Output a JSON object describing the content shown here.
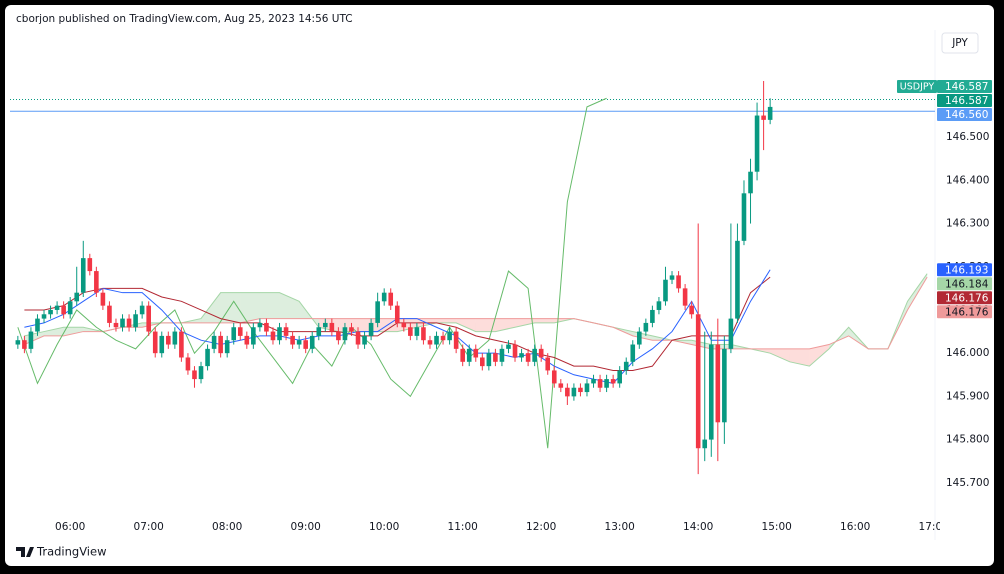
{
  "header": {
    "publisher": "cborjon published on TradingView.com, Aug 25, 2023 14:56 UTC",
    "currency_button": "JPY",
    "footer": "TradingView"
  },
  "chart_data": {
    "type": "candlestick",
    "symbol": "USDJPY",
    "up_color": "#089981",
    "down_color": "#f23645",
    "xlim": [
      "05:14",
      "17:01"
    ],
    "ylim": [
      145.637,
      146.748
    ],
    "grid": false,
    "xticks": [
      "06:00",
      "07:00",
      "08:00",
      "09:00",
      "10:00",
      "11:00",
      "12:00",
      "13:00",
      "14:00",
      "15:00",
      "16:00",
      "17:00"
    ],
    "yticks": [
      {
        "value": 145.7,
        "label": "145.700"
      },
      {
        "value": 145.8,
        "label": "145.800"
      },
      {
        "value": 145.9,
        "label": "145.900"
      },
      {
        "value": 146.0,
        "label": "146.000"
      },
      {
        "value": 146.1,
        "label": "146.100"
      },
      {
        "value": 146.2,
        "label": "146.200"
      },
      {
        "value": 146.3,
        "label": "146.300"
      },
      {
        "value": 146.4,
        "label": "146.400"
      },
      {
        "value": 146.5,
        "label": "146.500"
      }
    ],
    "x": [
      "05:20",
      "05:25",
      "05:30",
      "05:35",
      "05:40",
      "05:45",
      "05:50",
      "05:55",
      "06:00",
      "06:05",
      "06:10",
      "06:15",
      "06:20",
      "06:25",
      "06:30",
      "06:35",
      "06:40",
      "06:45",
      "06:50",
      "06:55",
      "07:00",
      "07:05",
      "07:10",
      "07:15",
      "07:20",
      "07:25",
      "07:30",
      "07:35",
      "07:40",
      "07:45",
      "07:50",
      "07:55",
      "08:00",
      "08:05",
      "08:10",
      "08:15",
      "08:20",
      "08:25",
      "08:30",
      "08:35",
      "08:40",
      "08:45",
      "08:50",
      "08:55",
      "09:00",
      "09:05",
      "09:10",
      "09:15",
      "09:20",
      "09:25",
      "09:30",
      "09:35",
      "09:40",
      "09:45",
      "09:50",
      "09:55",
      "10:00",
      "10:05",
      "10:10",
      "10:15",
      "10:20",
      "10:25",
      "10:30",
      "10:35",
      "10:40",
      "10:45",
      "10:50",
      "10:55",
      "11:00",
      "11:05",
      "11:10",
      "11:15",
      "11:20",
      "11:25",
      "11:30",
      "11:35",
      "11:40",
      "11:45",
      "11:50",
      "11:55",
      "12:00",
      "12:05",
      "12:10",
      "12:15",
      "12:20",
      "12:25",
      "12:30",
      "12:35",
      "12:40",
      "12:45",
      "12:50",
      "12:55",
      "13:00",
      "13:05",
      "13:10",
      "13:15",
      "13:20",
      "13:25",
      "13:30",
      "13:35",
      "13:40",
      "13:45",
      "13:50",
      "13:55",
      "14:00",
      "14:05",
      "14:10",
      "14:15",
      "14:20",
      "14:25",
      "14:30",
      "14:35",
      "14:40",
      "14:45",
      "14:50",
      "14:55"
    ],
    "open": [
      146.02,
      146.03,
      146.01,
      146.05,
      146.08,
      146.09,
      146.1,
      146.11,
      146.09,
      146.12,
      146.14,
      146.22,
      146.19,
      146.14,
      146.11,
      146.07,
      146.06,
      146.08,
      146.06,
      146.09,
      146.11,
      146.05,
      146.0,
      146.04,
      146.02,
      146.05,
      145.99,
      145.96,
      145.94,
      145.97,
      146.01,
      146.04,
      146.0,
      146.03,
      146.06,
      146.04,
      146.02,
      146.06,
      146.07,
      146.05,
      146.03,
      146.06,
      146.04,
      146.02,
      146.03,
      146.01,
      146.04,
      146.06,
      146.07,
      146.05,
      146.03,
      146.06,
      146.05,
      146.02,
      146.04,
      146.07,
      146.12,
      146.14,
      146.11,
      146.07,
      146.06,
      146.04,
      146.06,
      146.03,
      146.02,
      146.04,
      146.03,
      146.05,
      146.01,
      145.98,
      146.01,
      145.99,
      145.97,
      146.0,
      145.98,
      146.01,
      146.02,
      145.99,
      146.0,
      145.98,
      146.01,
      145.99,
      145.96,
      145.93,
      145.92,
      145.9,
      145.92,
      145.91,
      145.93,
      145.94,
      145.92,
      145.94,
      145.93,
      145.96,
      145.98,
      146.02,
      146.05,
      146.07,
      146.1,
      146.12,
      146.17,
      146.18,
      146.15,
      146.11,
      146.09,
      145.78,
      145.8,
      146.02,
      145.84,
      146.01,
      146.08,
      146.26,
      146.37,
      146.42,
      146.55,
      146.54
    ],
    "high": [
      146.04,
      146.04,
      146.06,
      146.09,
      146.1,
      146.11,
      146.12,
      146.12,
      146.13,
      146.2,
      146.26,
      146.23,
      146.2,
      146.15,
      146.12,
      146.08,
      146.09,
      146.09,
      146.1,
      146.12,
      146.12,
      146.06,
      146.05,
      146.05,
      146.06,
      146.06,
      146.0,
      145.97,
      145.98,
      146.02,
      146.05,
      146.05,
      146.04,
      146.07,
      146.07,
      146.05,
      146.07,
      146.08,
      146.08,
      146.06,
      146.07,
      146.07,
      146.05,
      146.04,
      146.04,
      146.05,
      146.07,
      146.08,
      146.08,
      146.06,
      146.07,
      146.07,
      146.06,
      146.05,
      146.08,
      146.14,
      146.15,
      146.15,
      146.12,
      146.08,
      146.07,
      146.07,
      146.07,
      146.04,
      146.05,
      146.05,
      146.06,
      146.06,
      146.02,
      146.02,
      146.02,
      146.0,
      146.01,
      146.01,
      146.02,
      146.03,
      146.03,
      146.01,
      146.01,
      146.02,
      146.02,
      146.0,
      145.97,
      145.94,
      145.93,
      145.93,
      145.93,
      145.94,
      145.95,
      145.95,
      145.95,
      145.95,
      145.97,
      145.99,
      146.03,
      146.06,
      146.08,
      146.11,
      146.13,
      146.2,
      146.19,
      146.19,
      146.16,
      146.12,
      146.3,
      146.05,
      146.05,
      146.08,
      146.04,
      146.3,
      146.3,
      146.4,
      146.45,
      146.58,
      146.63,
      146.59
    ],
    "low": [
      146.01,
      146.0,
      146.0,
      146.04,
      146.07,
      146.08,
      146.09,
      146.08,
      146.08,
      146.11,
      146.13,
      146.18,
      146.13,
      146.1,
      146.06,
      146.05,
      146.05,
      146.05,
      146.05,
      146.08,
      146.04,
      145.99,
      145.99,
      146.01,
      146.01,
      145.98,
      145.95,
      145.92,
      145.93,
      145.96,
      146.0,
      145.99,
      145.99,
      146.02,
      146.03,
      146.01,
      146.01,
      146.05,
      146.04,
      146.02,
      146.02,
      146.03,
      146.01,
      146.01,
      146.0,
      146.0,
      146.03,
      146.05,
      146.04,
      146.02,
      146.02,
      146.04,
      146.01,
      146.01,
      146.03,
      146.06,
      146.11,
      146.1,
      146.06,
      146.05,
      146.03,
      146.03,
      146.02,
      146.01,
      146.01,
      146.02,
      146.02,
      146.0,
      145.97,
      145.97,
      145.98,
      145.96,
      145.96,
      145.97,
      145.97,
      146.0,
      145.98,
      145.98,
      145.97,
      145.97,
      145.98,
      145.95,
      145.92,
      145.91,
      145.88,
      145.89,
      145.9,
      145.9,
      145.92,
      145.91,
      145.91,
      145.92,
      145.92,
      145.95,
      145.97,
      146.01,
      146.04,
      146.06,
      146.09,
      146.11,
      146.16,
      146.14,
      146.1,
      146.08,
      145.72,
      145.75,
      145.76,
      145.75,
      145.79,
      146.0,
      146.07,
      146.25,
      146.3,
      146.4,
      146.47,
      146.53
    ],
    "close": [
      146.03,
      146.01,
      146.05,
      146.08,
      146.09,
      146.1,
      146.11,
      146.09,
      146.12,
      146.14,
      146.22,
      146.19,
      146.14,
      146.11,
      146.07,
      146.06,
      146.08,
      146.06,
      146.09,
      146.11,
      146.05,
      146.0,
      146.04,
      146.02,
      146.05,
      145.99,
      145.96,
      145.94,
      145.97,
      146.01,
      146.04,
      146.0,
      146.03,
      146.06,
      146.04,
      146.02,
      146.06,
      146.07,
      146.05,
      146.03,
      146.06,
      146.04,
      146.02,
      146.03,
      146.01,
      146.04,
      146.06,
      146.07,
      146.05,
      146.03,
      146.06,
      146.05,
      146.02,
      146.04,
      146.07,
      146.12,
      146.14,
      146.11,
      146.07,
      146.06,
      146.04,
      146.06,
      146.03,
      146.02,
      146.04,
      146.03,
      146.05,
      146.01,
      145.98,
      146.01,
      145.99,
      145.97,
      146.0,
      145.98,
      146.01,
      146.02,
      145.99,
      146.0,
      145.98,
      146.01,
      145.99,
      145.96,
      145.93,
      145.92,
      145.9,
      145.92,
      145.91,
      145.93,
      145.94,
      145.92,
      145.94,
      145.93,
      145.96,
      145.98,
      146.02,
      146.05,
      146.07,
      146.1,
      146.12,
      146.17,
      146.18,
      146.15,
      146.11,
      146.09,
      145.78,
      145.8,
      146.02,
      145.84,
      146.01,
      146.08,
      146.26,
      146.37,
      146.42,
      146.55,
      146.54,
      146.57
    ],
    "cloud": {
      "up_fill": "rgba(67,160,71,0.18)",
      "down_fill": "rgba(244,67,54,0.18)",
      "a_color": "#a5d6a7",
      "b_color": "#ef9a9a",
      "x": [
        "05:25",
        "05:40",
        "05:55",
        "06:10",
        "06:25",
        "06:40",
        "06:55",
        "07:10",
        "07:25",
        "07:40",
        "07:55",
        "08:10",
        "08:25",
        "08:40",
        "08:55",
        "09:10",
        "09:25",
        "09:40",
        "09:55",
        "10:10",
        "10:25",
        "10:40",
        "10:55",
        "11:10",
        "11:25",
        "11:40",
        "11:55",
        "12:10",
        "12:25",
        "12:40",
        "12:55",
        "13:10",
        "13:25",
        "13:40",
        "13:55",
        "14:10",
        "14:25",
        "14:40",
        "14:55",
        "15:10",
        "15:25",
        "15:40",
        "15:55",
        "16:10",
        "16:25",
        "16:40",
        "16:55"
      ],
      "span_a": [
        146.04,
        146.05,
        146.06,
        146.06,
        146.05,
        146.06,
        146.07,
        146.07,
        146.07,
        146.08,
        146.14,
        146.14,
        146.14,
        146.14,
        146.12,
        146.06,
        146.05,
        146.05,
        146.05,
        146.05,
        146.06,
        146.07,
        146.07,
        146.05,
        146.05,
        146.06,
        146.07,
        146.07,
        146.08,
        146.07,
        146.06,
        146.05,
        146.04,
        146.03,
        146.03,
        146.02,
        146.02,
        146.01,
        146.0,
        145.98,
        145.97,
        146.01,
        146.06,
        146.01,
        146.01,
        146.12,
        146.184
      ],
      "span_b": [
        146.02,
        146.04,
        146.04,
        146.05,
        146.05,
        146.06,
        146.06,
        146.07,
        146.07,
        146.07,
        146.07,
        146.07,
        146.08,
        146.08,
        146.08,
        146.08,
        146.08,
        146.08,
        146.08,
        146.08,
        146.08,
        146.08,
        146.08,
        146.08,
        146.08,
        146.08,
        146.08,
        146.08,
        146.08,
        146.07,
        146.06,
        146.04,
        146.03,
        146.03,
        146.02,
        146.01,
        146.01,
        146.01,
        146.01,
        146.01,
        146.01,
        146.02,
        146.04,
        146.01,
        146.01,
        146.1,
        146.176
      ]
    },
    "lines": [
      {
        "color": "#66bb6a",
        "x": [
          "05:20",
          "05:35",
          "05:50",
          "06:05",
          "06:20",
          "06:35",
          "06:50",
          "07:05",
          "07:20",
          "07:35",
          "07:50",
          "08:05",
          "08:20",
          "08:35",
          "08:50",
          "09:05",
          "09:20",
          "09:35",
          "09:50",
          "10:05",
          "10:20",
          "10:35",
          "10:50",
          "11:05",
          "11:20",
          "11:35",
          "11:50",
          "12:05",
          "12:20",
          "12:35",
          "12:50"
        ],
        "values": [
          146.06,
          145.93,
          146.02,
          146.1,
          146.06,
          146.03,
          146.01,
          146.06,
          146.1,
          146.0,
          146.05,
          146.12,
          146.05,
          145.99,
          145.93,
          146.02,
          145.97,
          146.06,
          146.02,
          145.94,
          145.9,
          145.98,
          146.06,
          145.99,
          146.03,
          146.19,
          146.15,
          145.78,
          146.35,
          146.57,
          146.59
        ]
      },
      {
        "color": "#b22833",
        "x": [
          "05:25",
          "05:40",
          "05:55",
          "06:10",
          "06:25",
          "06:40",
          "06:55",
          "07:10",
          "07:25",
          "07:40",
          "07:55",
          "08:10",
          "08:25",
          "08:40",
          "08:55",
          "09:10",
          "09:25",
          "09:40",
          "09:55",
          "10:10",
          "10:25",
          "10:40",
          "10:55",
          "11:10",
          "11:25",
          "11:40",
          "11:55",
          "12:10",
          "12:25",
          "12:40",
          "12:55",
          "13:10",
          "13:25",
          "13:40",
          "13:55",
          "14:10",
          "14:25",
          "14:40",
          "14:55"
        ],
        "values": [
          146.1,
          146.1,
          146.11,
          146.14,
          146.15,
          146.15,
          146.15,
          146.13,
          146.12,
          146.1,
          146.08,
          146.07,
          146.07,
          146.05,
          146.05,
          146.05,
          146.05,
          146.04,
          146.04,
          146.07,
          146.07,
          146.07,
          146.06,
          146.04,
          146.03,
          146.02,
          146.0,
          145.99,
          145.97,
          145.97,
          145.96,
          145.96,
          145.97,
          146.03,
          146.04,
          146.04,
          146.04,
          146.14,
          146.176
        ]
      },
      {
        "color": "#2962ff",
        "x": [
          "05:25",
          "05:40",
          "05:55",
          "06:10",
          "06:25",
          "06:40",
          "06:55",
          "07:10",
          "07:25",
          "07:40",
          "07:55",
          "08:10",
          "08:25",
          "08:40",
          "08:55",
          "09:10",
          "09:25",
          "09:40",
          "09:55",
          "10:10",
          "10:25",
          "10:40",
          "10:55",
          "11:10",
          "11:25",
          "11:40",
          "11:55",
          "12:10",
          "12:25",
          "12:40",
          "12:55",
          "13:10",
          "13:25",
          "13:40",
          "13:55",
          "14:10",
          "14:25",
          "14:40",
          "14:55"
        ],
        "values": [
          146.06,
          146.07,
          146.09,
          146.12,
          146.15,
          146.14,
          146.14,
          146.1,
          146.05,
          146.03,
          146.02,
          146.03,
          146.04,
          146.04,
          146.03,
          146.04,
          146.04,
          146.05,
          146.05,
          146.08,
          146.08,
          146.06,
          146.04,
          146.0,
          146.0,
          145.99,
          146.0,
          145.97,
          145.95,
          145.94,
          145.93,
          145.98,
          146.01,
          146.05,
          146.12,
          146.03,
          146.03,
          146.12,
          146.193
        ]
      }
    ],
    "price_tags": [
      {
        "value": 146.587,
        "label": "146.587",
        "color": "#22ab94",
        "label_color": "#ffffff",
        "line_style": "none"
      },
      {
        "value": 146.587,
        "label": "146.587",
        "color": "#089981",
        "label_color": "#ffffff",
        "line_style": "dotted"
      },
      {
        "value": 146.56,
        "label": "146.560",
        "color": "#5b9cf6",
        "label_color": "#ffffff",
        "line_style": "solid"
      },
      {
        "value": 146.193,
        "label": "146.193",
        "color": "#2962ff",
        "label_color": "#ffffff",
        "line_style": "none"
      },
      {
        "value": 146.184,
        "label": "146.184",
        "color": "#a5d6a7",
        "label_color": "#131722",
        "line_style": "none"
      },
      {
        "value": 146.176,
        "label": "146.176",
        "color": "#b22833",
        "label_color": "#ffffff",
        "line_style": "none"
      },
      {
        "value": 146.176,
        "label": "146.176",
        "color": "#ef9a9a",
        "label_color": "#131722",
        "line_style": "none"
      }
    ]
  }
}
